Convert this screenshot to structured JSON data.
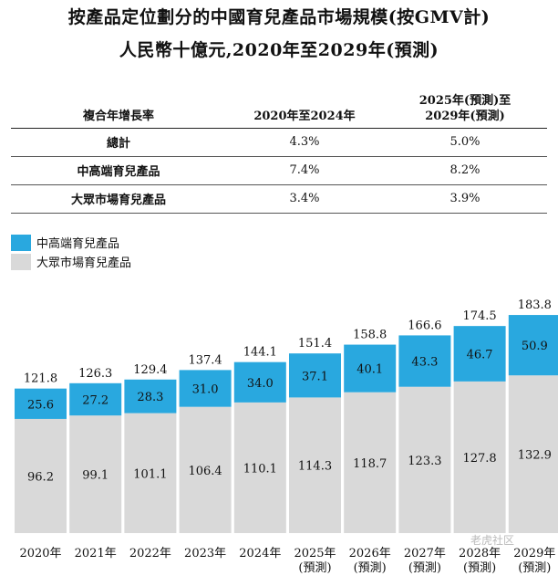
{
  "title_line1": "按產品定位劃分的中國育兒產品市場規模(按GMV計)",
  "title_line2": "人民幣十億元,2020年至2029年(預測)",
  "table": {
    "header": [
      "複合年增長率",
      "2020年至2024年",
      "2025年(預測)至\n2029年(預測)"
    ],
    "rows": [
      {
        "label": "總計",
        "v1": "4.3%",
        "v2": "5.0%"
      },
      {
        "label": "中高端育兒產品",
        "v1": "7.4%",
        "v2": "8.2%"
      },
      {
        "label": "大眾市場育兒產品",
        "v1": "3.4%",
        "v2": "3.9%"
      }
    ]
  },
  "watermark": "老虎社区",
  "colors": {
    "premium": "#29a8df",
    "mass": "#d9d9d9"
  },
  "chart_data": {
    "type": "bar",
    "stacked": true,
    "categories": [
      "2020年",
      "2021年",
      "2022年",
      "2023年",
      "2024年",
      "2025年\n(預測)",
      "2026年\n(預測)",
      "2027年\n(預測)",
      "2028年\n(預測)",
      "2029年\n(預測)"
    ],
    "series": [
      {
        "name": "大眾市場育兒產品",
        "values": [
          96.2,
          99.1,
          101.1,
          106.4,
          110.1,
          114.3,
          118.7,
          123.3,
          127.8,
          132.9
        ]
      },
      {
        "name": "中高端育兒產品",
        "values": [
          25.6,
          27.2,
          28.3,
          31.0,
          34.0,
          37.1,
          40.1,
          43.3,
          46.7,
          50.9
        ]
      }
    ],
    "totals": [
      121.8,
      126.3,
      129.4,
      137.4,
      144.1,
      151.4,
      158.8,
      166.6,
      174.5,
      183.8
    ],
    "legend_placement": "top-left",
    "grid": false
  }
}
